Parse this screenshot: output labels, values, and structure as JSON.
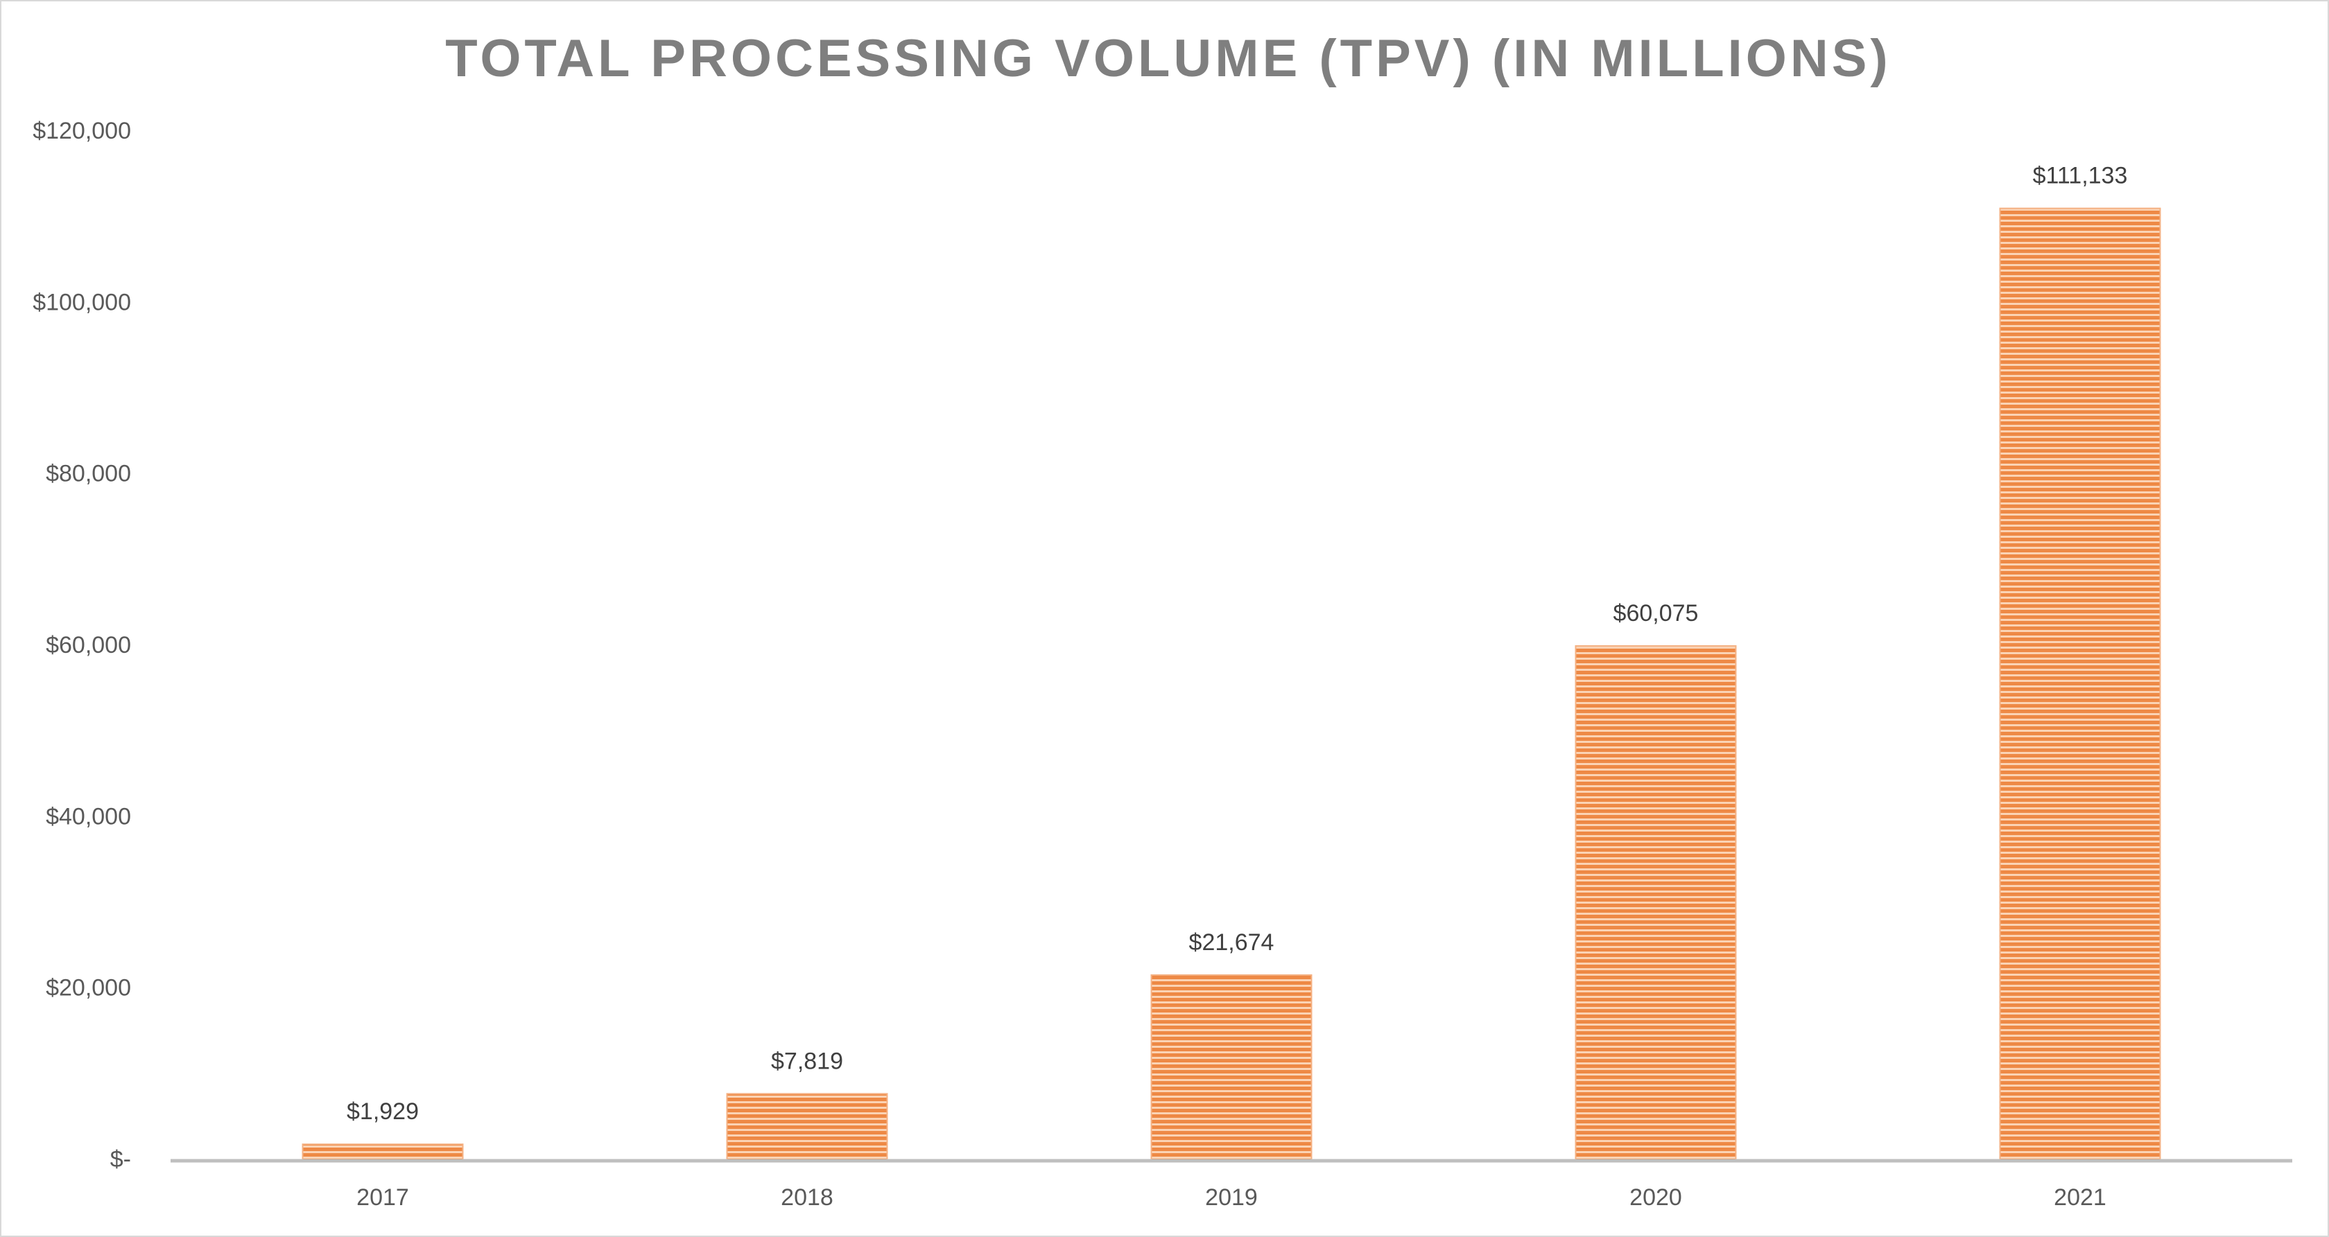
{
  "chart_data": {
    "type": "bar",
    "title": "TOTAL PROCESSING VOLUME (TPV) (IN MILLIONS)",
    "categories": [
      "2017",
      "2018",
      "2019",
      "2020",
      "2021"
    ],
    "values": [
      1929,
      7819,
      21674,
      60075,
      111133
    ],
    "value_labels": [
      "$1,929",
      "$7,819",
      "$21,674",
      "$60,075",
      "$111,133"
    ],
    "color": "#ed7d31",
    "ylim": [
      0,
      120000
    ],
    "yticks": [
      {
        "value": 0,
        "label": "$-"
      },
      {
        "value": 20000,
        "label": "$20,000"
      },
      {
        "value": 40000,
        "label": "$40,000"
      },
      {
        "value": 60000,
        "label": "$60,000"
      },
      {
        "value": 80000,
        "label": "$80,000"
      },
      {
        "value": 100000,
        "label": "$100,000"
      },
      {
        "value": 120000,
        "label": "$120,000"
      }
    ],
    "grid": false
  }
}
